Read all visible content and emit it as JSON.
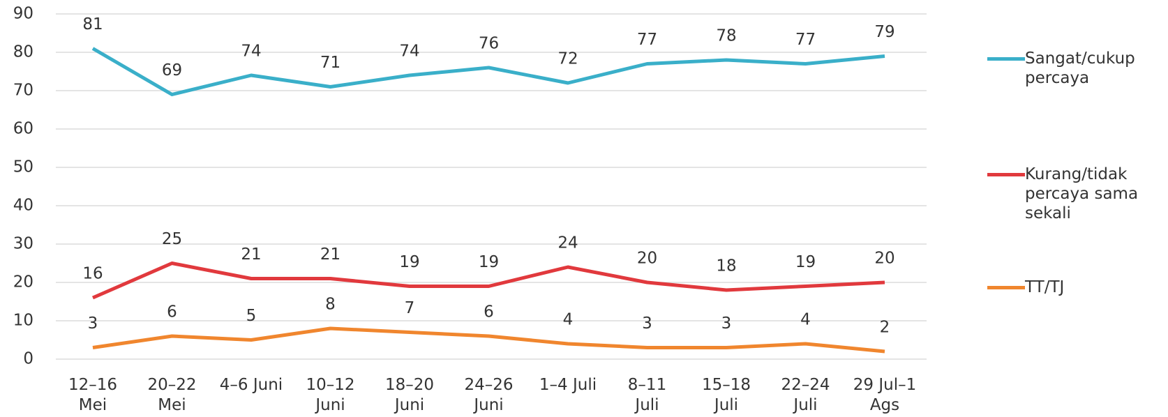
{
  "chart_data": {
    "type": "line",
    "categories": [
      [
        "12–16",
        "Mei"
      ],
      [
        "20–22",
        "Mei"
      ],
      [
        "4–6 Juni"
      ],
      [
        "10–12",
        "Juni"
      ],
      [
        "18–20",
        "Juni"
      ],
      [
        "24–26",
        "Juni"
      ],
      [
        "1–4 Juli"
      ],
      [
        "8–11",
        "Juli"
      ],
      [
        "15–18",
        "Juli"
      ],
      [
        "22–24",
        "Juli"
      ],
      [
        "29 Jul–1",
        "Ags"
      ]
    ],
    "series": [
      {
        "name": "Sangat/cukup percaya",
        "color": "#3aafc9",
        "values": [
          81,
          69,
          74,
          71,
          74,
          76,
          72,
          77,
          78,
          77,
          79
        ]
      },
      {
        "name": "Kurang/tidak percaya sama sekali",
        "color": "#e1393d",
        "values": [
          16,
          25,
          21,
          21,
          19,
          19,
          24,
          20,
          18,
          19,
          20
        ]
      },
      {
        "name": "TT/TJ",
        "color": "#f0862e",
        "values": [
          3,
          6,
          5,
          8,
          7,
          6,
          4,
          3,
          3,
          4,
          2
        ]
      }
    ],
    "ylim": [
      0,
      90
    ],
    "yticks": [
      0,
      10,
      20,
      30,
      40,
      50,
      60,
      70,
      80,
      90
    ],
    "grid": true,
    "legend": "right"
  }
}
